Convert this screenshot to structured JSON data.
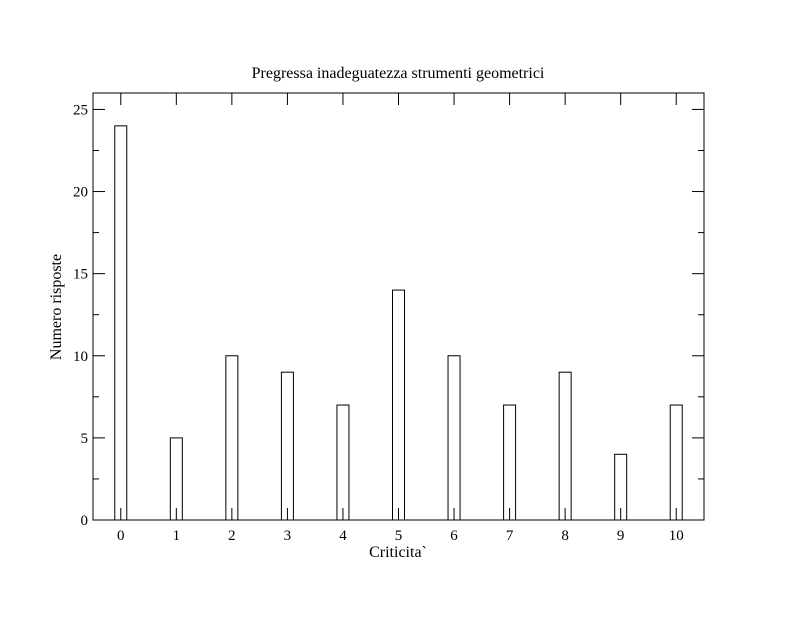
{
  "chart_data": {
    "type": "bar",
    "title": "Pregressa inadeguatezza strumenti geometrici",
    "xlabel": "Criticita`",
    "ylabel": "Numero risposte",
    "categories": [
      "0",
      "1",
      "2",
      "3",
      "4",
      "5",
      "6",
      "7",
      "8",
      "9",
      "10"
    ],
    "values": [
      24,
      5,
      10,
      9,
      7,
      14,
      10,
      7,
      9,
      4,
      7
    ],
    "xlim": [
      -0.5,
      10.5
    ],
    "ylim": [
      0,
      26
    ],
    "y_ticks": [
      0,
      5,
      10,
      15,
      20,
      25
    ],
    "grid": false,
    "colors": {
      "bar_fill": "#ffffff",
      "bar_stroke": "#000000",
      "axes": "#000000",
      "background": "#ffffff"
    }
  }
}
